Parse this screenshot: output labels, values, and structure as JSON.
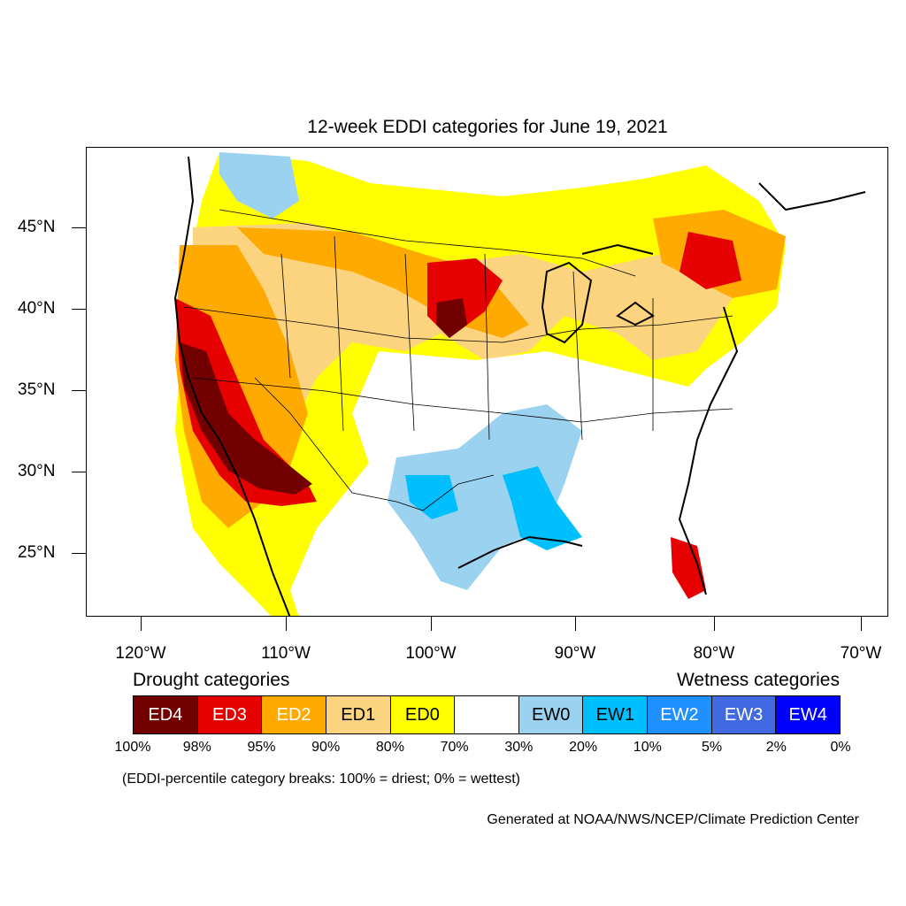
{
  "title": "12-week EDDI categories for June 19, 2021",
  "lat_labels": [
    "45°N",
    "40°N",
    "35°N",
    "30°N",
    "25°N"
  ],
  "lon_labels": [
    "120°W",
    "110°W",
    "100°W",
    "90°W",
    "80°W",
    "70°W"
  ],
  "legend": {
    "drought_heading": "Drought categories",
    "wetness_heading": "Wetness categories",
    "categories": [
      {
        "label": "ED4",
        "color": "#730000",
        "text_color": "#ffffff"
      },
      {
        "label": "ED3",
        "color": "#e60000",
        "text_color": "#ffffff"
      },
      {
        "label": "ED2",
        "color": "#ffaa00",
        "text_color": "#ffffff"
      },
      {
        "label": "ED1",
        "color": "#fcd37f",
        "text_color": "#000000"
      },
      {
        "label": "ED0",
        "color": "#ffff00",
        "text_color": "#000000"
      },
      {
        "label": "",
        "color": "#ffffff",
        "text_color": "#000000"
      },
      {
        "label": "EW0",
        "color": "#9ad2f0",
        "text_color": "#000000"
      },
      {
        "label": "EW1",
        "color": "#00bfff",
        "text_color": "#000000"
      },
      {
        "label": "EW2",
        "color": "#1e90ff",
        "text_color": "#ffffff"
      },
      {
        "label": "EW3",
        "color": "#4169e1",
        "text_color": "#ffffff"
      },
      {
        "label": "EW4",
        "color": "#0000ff",
        "text_color": "#ffffff"
      }
    ],
    "breaks": [
      "100%",
      "98%",
      "95%",
      "90%",
      "80%",
      "70%",
      "30%",
      "20%",
      "10%",
      "5%",
      "2%",
      "0%"
    ]
  },
  "note": "(EDDI-percentile category breaks: 100% = driest; 0% = wettest)",
  "credit": "Generated at NOAA/NWS/NCEP/Climate Prediction Center"
}
